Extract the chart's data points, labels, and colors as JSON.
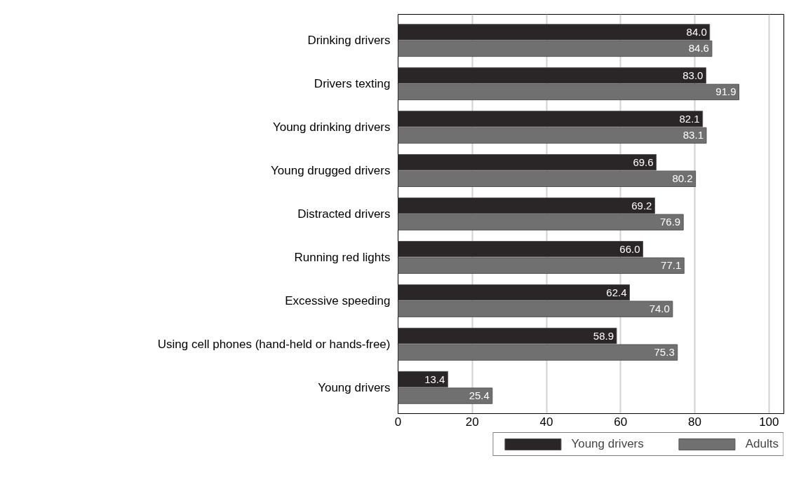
{
  "chart_data": {
    "type": "bar",
    "orientation": "horizontal",
    "categories": [
      "Drinking drivers",
      "Drivers texting",
      "Young drinking drivers",
      "Young drugged drivers",
      "Distracted drivers",
      "Running red lights",
      "Excessive speeding",
      "Using cell phones (hand-held or hands-free)",
      "Young drivers"
    ],
    "series": [
      {
        "name": "Young drivers",
        "color": "#2a2627",
        "values": [
          84.0,
          83.0,
          82.1,
          69.6,
          69.2,
          66.0,
          62.4,
          58.9,
          13.4
        ],
        "value_labels": [
          "84.0",
          "83.0",
          "82.1",
          "69.6",
          "69.2",
          "66.0",
          "62.4",
          "58.9",
          "13.4"
        ]
      },
      {
        "name": "Adults",
        "color": "#707070",
        "values": [
          84.6,
          91.9,
          83.1,
          80.2,
          76.9,
          77.1,
          74.0,
          75.3,
          25.4
        ],
        "value_labels": [
          "84.6",
          "91.9",
          "83.1",
          "80.2",
          "76.9",
          "77.1",
          "74.0",
          "75.3",
          "25.4"
        ]
      }
    ],
    "xlim": [
      0,
      104
    ],
    "xticks": [
      0,
      20,
      40,
      60,
      80,
      100
    ],
    "grid": "x",
    "legend": "bottom"
  }
}
